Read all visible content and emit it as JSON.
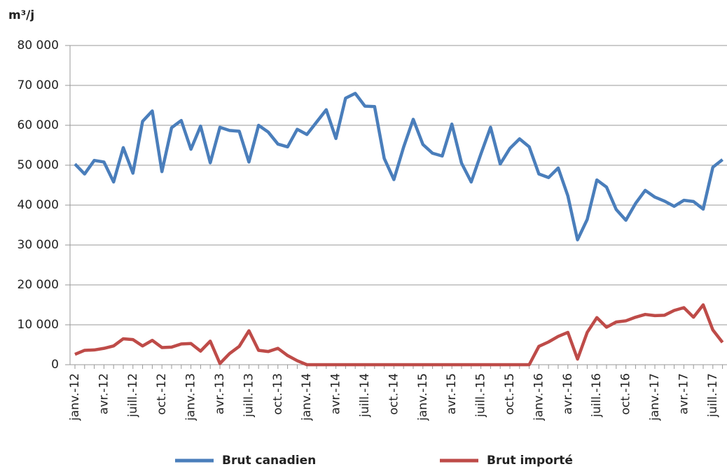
{
  "chart_data": {
    "type": "line",
    "y_axis_label": "m³/j",
    "categories": [
      "janv.-12",
      null,
      null,
      "avr.-12",
      null,
      null,
      "juill.-12",
      null,
      null,
      "oct.-12",
      null,
      null,
      "janv.-13",
      null,
      null,
      "avr.-13",
      null,
      null,
      "juill.-13",
      null,
      null,
      "oct.-13",
      null,
      null,
      "janv.-14",
      null,
      null,
      "avr.-14",
      null,
      null,
      "juill.-14",
      null,
      null,
      "oct.-14",
      null,
      null,
      "janv.-15",
      null,
      null,
      "avr.-15",
      null,
      null,
      "juill.-15",
      null,
      null,
      "oct.-15",
      null,
      null,
      "janv.-16",
      null,
      null,
      "avr.-16",
      null,
      null,
      "juill.-16",
      null,
      null,
      "oct.-16",
      null,
      null,
      "janv.-17",
      null,
      null,
      "avr.-17",
      null,
      null,
      "juill.-17",
      null
    ],
    "series": [
      {
        "name": "Brut canadien",
        "color": "#4a7ebb",
        "values": [
          50300,
          47800,
          51200,
          50800,
          45800,
          54400,
          48000,
          61000,
          63600,
          48400,
          59400,
          61200,
          54000,
          59800,
          50600,
          59500,
          58700,
          58500,
          50800,
          60000,
          58300,
          55300,
          54600,
          59000,
          57700,
          60800,
          63900,
          56700,
          66800,
          68000,
          64800,
          64700,
          51700,
          46400,
          54500,
          61500,
          55200,
          53000,
          52300,
          60300,
          50500,
          45800,
          52800,
          59500,
          50300,
          54200,
          56600,
          54600,
          47800,
          46900,
          49300,
          42300,
          31300,
          36400,
          46300,
          44500,
          38900,
          36200,
          40400,
          43700,
          42000,
          41000,
          39700,
          41200,
          40900,
          39000,
          49500,
          51400
        ]
      },
      {
        "name": "Brut importé",
        "color": "#be4b48",
        "values": [
          2600,
          3600,
          3700,
          4100,
          4700,
          6500,
          6300,
          4700,
          6100,
          4300,
          4400,
          5200,
          5300,
          3400,
          5900,
          300,
          2800,
          4600,
          8500,
          3600,
          3300,
          4100,
          2300,
          1000,
          0,
          0,
          0,
          0,
          0,
          0,
          0,
          0,
          0,
          0,
          0,
          0,
          0,
          0,
          0,
          0,
          0,
          0,
          0,
          0,
          0,
          0,
          0,
          0,
          4600,
          5700,
          7100,
          8100,
          1400,
          8100,
          11800,
          9400,
          10700,
          11000,
          11900,
          12600,
          12300,
          12400,
          13600,
          14300,
          11900,
          15000,
          8700,
          5600
        ]
      }
    ],
    "ylim": [
      0,
      80000
    ],
    "yticks": [
      0,
      {
        "value": 10000,
        "label": "10 000"
      },
      {
        "value": 20000,
        "label": "20 000"
      },
      {
        "value": 30000,
        "label": "30 000"
      },
      {
        "value": 40000,
        "label": "40 000"
      },
      {
        "value": 50000,
        "label": "50 000"
      },
      {
        "value": 60000,
        "label": "60 000"
      },
      {
        "value": 70000,
        "label": "70 000"
      },
      {
        "value": 80000,
        "label": "80 000"
      }
    ],
    "grid": true,
    "legend": "bottom"
  }
}
